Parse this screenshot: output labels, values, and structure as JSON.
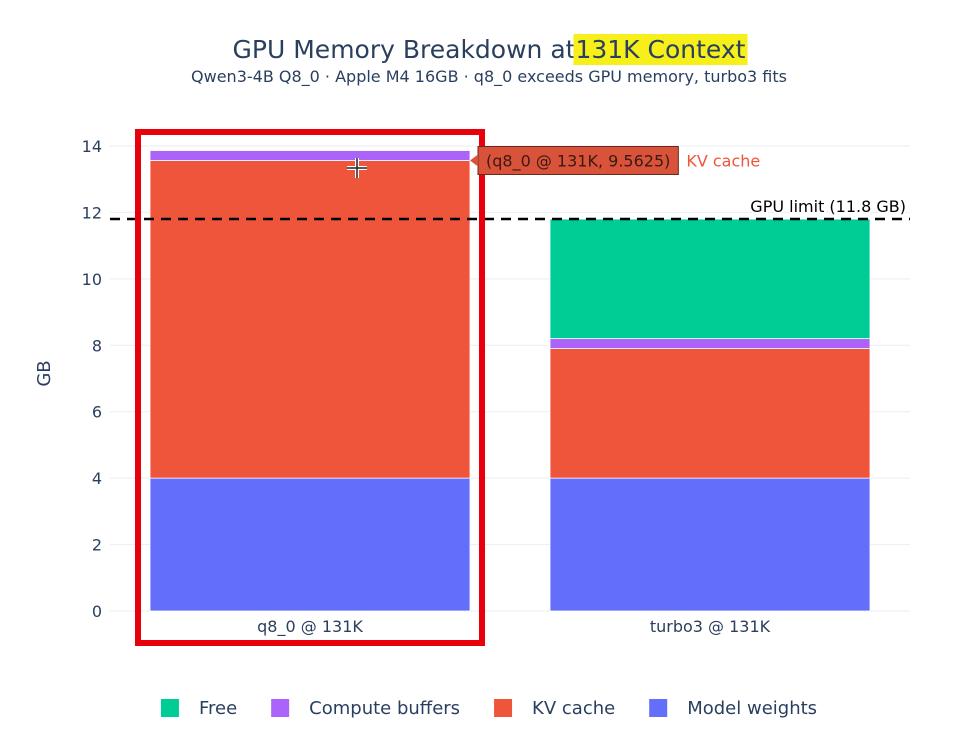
{
  "chart_data": {
    "type": "bar",
    "stacked": true,
    "title_prefix": "GPU Memory Breakdown at ",
    "title_highlight": "131K Context",
    "subtitle": "Qwen3-4B Q8_0 · Apple M4 16GB · q8_0 exceeds GPU memory, turbo3 fits",
    "xlabel": "",
    "ylabel": "GB",
    "ylim": [
      0,
      14.3
    ],
    "yticks": [
      0,
      2,
      4,
      6,
      8,
      10,
      12,
      14
    ],
    "grid": true,
    "categories": [
      "q8_0 @ 131K",
      "turbo3 @ 131K"
    ],
    "series": [
      {
        "name": "Model weights",
        "color": "#636efa",
        "values": [
          4.0,
          4.0
        ]
      },
      {
        "name": "KV cache",
        "color": "#ef553b",
        "values": [
          9.5625,
          3.9
        ]
      },
      {
        "name": "Compute buffers",
        "color": "#ab63fa",
        "values": [
          0.3,
          0.3
        ]
      },
      {
        "name": "Free",
        "color": "#00cc96",
        "values": [
          0,
          3.6
        ]
      }
    ],
    "legend_order": [
      "Free",
      "Compute buffers",
      "KV cache",
      "Model weights"
    ],
    "legend_position": "bottom",
    "reference_line": {
      "value": 11.8,
      "label": "GPU limit (11.8 GB)"
    },
    "tooltip": {
      "text": "(q8_0 @ 131K, 9.5625)",
      "series_label": "KV cache",
      "category_index": 0,
      "series_name": "KV cache"
    },
    "highlight_box_category_index": 0,
    "highlight_color": "#e8000b"
  }
}
